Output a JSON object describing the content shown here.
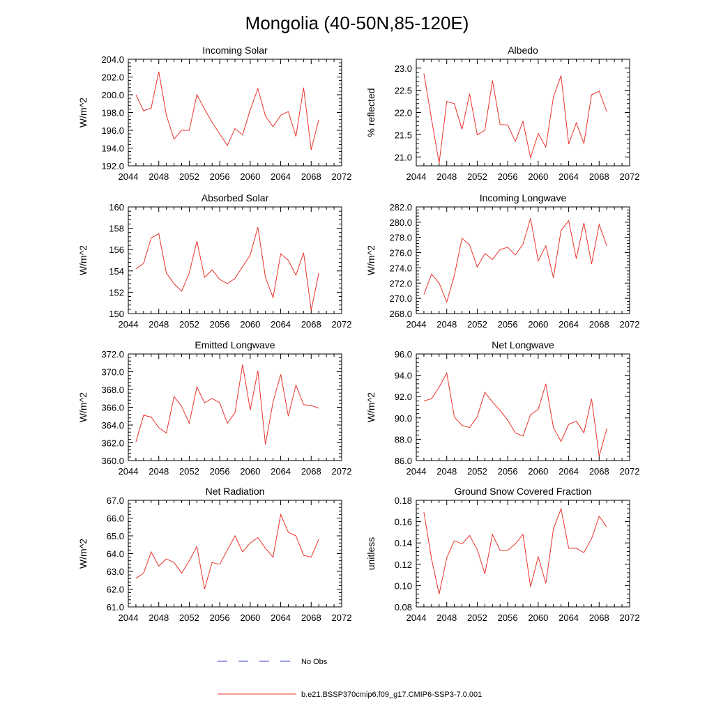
{
  "page_title": "Mongolia (40-50N,85-120E)",
  "legend": {
    "placement": "bottom-center",
    "entries": [
      {
        "label": "No Obs",
        "color": "#3b3bd0",
        "style": "dashed"
      },
      {
        "label": "b.e21.BSSP370cmip6.f09_g17.CMIP6-SSP3-7.0.001",
        "color": "#e8322a",
        "style": "solid"
      }
    ]
  },
  "colors": {
    "series_line": "#e8322a"
  },
  "chart_data": [
    {
      "type": "line",
      "title": "Incoming Solar",
      "ylabel": "W/m^2",
      "xlim": [
        2044,
        2072
      ],
      "ylim": [
        192,
        204
      ],
      "x_ticks": [
        "2044",
        "2048",
        "2052",
        "2056",
        "2060",
        "2064",
        "2068",
        "2072"
      ],
      "y_ticks": [
        "192.0",
        "194.0",
        "196.0",
        "198.0",
        "200.0",
        "202.0",
        "204.0"
      ],
      "x": [
        2045,
        2046,
        2047,
        2048,
        2049,
        2050,
        2051,
        2052,
        2053,
        2054,
        2055,
        2056,
        2057,
        2058,
        2059,
        2060,
        2061,
        2062,
        2063,
        2064,
        2065,
        2066,
        2067,
        2068,
        2069
      ],
      "series": [
        {
          "values": [
            200.0,
            198.2,
            198.5,
            202.6,
            197.7,
            195.0,
            196.0,
            196.0,
            200.0,
            198.4,
            196.9,
            195.6,
            194.3,
            196.2,
            195.5,
            198.3,
            200.7,
            197.6,
            196.4,
            197.7,
            198.1,
            195.3,
            200.8,
            193.8,
            197.2
          ]
        }
      ]
    },
    {
      "type": "line",
      "title": "Albedo",
      "ylabel": "% reflected",
      "xlim": [
        2044,
        2072
      ],
      "ylim": [
        20.8,
        23.2
      ],
      "x_ticks": [
        "2044",
        "2048",
        "2052",
        "2056",
        "2060",
        "2064",
        "2068",
        "2072"
      ],
      "y_ticks": [
        "21.0",
        "21.5",
        "22.0",
        "22.5",
        "23.0"
      ],
      "x": [
        2045,
        2046,
        2047,
        2048,
        2049,
        2050,
        2051,
        2052,
        2053,
        2054,
        2055,
        2056,
        2057,
        2058,
        2059,
        2060,
        2061,
        2062,
        2063,
        2064,
        2065,
        2066,
        2067,
        2068,
        2069
      ],
      "series": [
        {
          "values": [
            22.88,
            21.85,
            20.86,
            22.25,
            22.2,
            21.62,
            22.42,
            21.5,
            21.6,
            22.72,
            21.73,
            21.72,
            21.35,
            21.8,
            20.98,
            21.53,
            21.22,
            22.35,
            22.83,
            21.29,
            21.77,
            21.3,
            22.4,
            22.48,
            22.02
          ]
        }
      ]
    },
    {
      "type": "line",
      "title": "Absorbed Solar",
      "ylabel": "W/m^2",
      "xlim": [
        2044,
        2072
      ],
      "ylim": [
        150,
        160
      ],
      "x_ticks": [
        "2044",
        "2048",
        "2052",
        "2056",
        "2060",
        "2064",
        "2068",
        "2072"
      ],
      "y_ticks": [
        "150",
        "152",
        "154",
        "156",
        "158",
        "160"
      ],
      "x": [
        2045,
        2046,
        2047,
        2048,
        2049,
        2050,
        2051,
        2052,
        2053,
        2054,
        2055,
        2056,
        2057,
        2058,
        2059,
        2060,
        2061,
        2062,
        2063,
        2064,
        2065,
        2066,
        2067,
        2068,
        2069
      ],
      "series": [
        {
          "values": [
            154.2,
            154.7,
            157.1,
            157.5,
            153.8,
            152.8,
            152.1,
            153.8,
            156.8,
            153.4,
            154.1,
            153.2,
            152.8,
            153.3,
            154.4,
            155.5,
            158.1,
            153.4,
            151.5,
            155.6,
            155.0,
            153.6,
            155.7,
            150.3,
            153.8
          ]
        }
      ]
    },
    {
      "type": "line",
      "title": "Incoming Longwave",
      "ylabel": "W/m^2",
      "xlim": [
        2044,
        2072
      ],
      "ylim": [
        268,
        282
      ],
      "x_ticks": [
        "2044",
        "2048",
        "2052",
        "2056",
        "2060",
        "2064",
        "2068",
        "2072"
      ],
      "y_ticks": [
        "268.0",
        "270.0",
        "272.0",
        "274.0",
        "276.0",
        "278.0",
        "280.0",
        "282.0"
      ],
      "x": [
        2045,
        2046,
        2047,
        2048,
        2049,
        2050,
        2051,
        2052,
        2053,
        2054,
        2055,
        2056,
        2057,
        2058,
        2059,
        2060,
        2061,
        2062,
        2063,
        2064,
        2065,
        2066,
        2067,
        2068,
        2069
      ],
      "series": [
        {
          "values": [
            270.5,
            273.2,
            272.0,
            269.5,
            273.0,
            277.9,
            277.0,
            274.1,
            275.9,
            275.1,
            276.4,
            276.7,
            275.7,
            277.1,
            280.5,
            274.9,
            276.9,
            272.7,
            278.9,
            280.2,
            275.2,
            279.9,
            274.5,
            279.7,
            276.9
          ]
        }
      ]
    },
    {
      "type": "line",
      "title": "Emitted Longwave",
      "ylabel": "W/m^2",
      "xlim": [
        2044,
        2072
      ],
      "ylim": [
        360,
        372
      ],
      "x_ticks": [
        "2044",
        "2048",
        "2052",
        "2056",
        "2060",
        "2064",
        "2068",
        "2072"
      ],
      "y_ticks": [
        "360.0",
        "362.0",
        "364.0",
        "366.0",
        "368.0",
        "370.0",
        "372.0"
      ],
      "x": [
        2045,
        2046,
        2047,
        2048,
        2049,
        2050,
        2051,
        2052,
        2053,
        2054,
        2055,
        2056,
        2057,
        2058,
        2059,
        2060,
        2061,
        2062,
        2063,
        2064,
        2065,
        2066,
        2067,
        2068,
        2069
      ],
      "series": [
        {
          "values": [
            362.1,
            365.1,
            364.9,
            363.7,
            363.1,
            367.2,
            366.1,
            364.2,
            368.3,
            366.5,
            367.0,
            366.5,
            364.2,
            365.4,
            370.8,
            365.7,
            370.1,
            361.8,
            366.6,
            369.7,
            365.0,
            368.5,
            366.3,
            366.2,
            365.9
          ]
        }
      ]
    },
    {
      "type": "line",
      "title": "Net Longwave",
      "ylabel": "W/m^2",
      "xlim": [
        2044,
        2072
      ],
      "ylim": [
        86,
        96
      ],
      "x_ticks": [
        "2044",
        "2048",
        "2052",
        "2056",
        "2060",
        "2064",
        "2068",
        "2072"
      ],
      "y_ticks": [
        "86.0",
        "88.0",
        "90.0",
        "92.0",
        "94.0",
        "96.0"
      ],
      "x": [
        2045,
        2046,
        2047,
        2048,
        2049,
        2050,
        2051,
        2052,
        2053,
        2054,
        2055,
        2056,
        2057,
        2058,
        2059,
        2060,
        2061,
        2062,
        2063,
        2064,
        2065,
        2066,
        2067,
        2068,
        2069
      ],
      "series": [
        {
          "values": [
            91.6,
            91.8,
            92.9,
            94.2,
            90.1,
            89.3,
            89.1,
            90.1,
            92.4,
            91.5,
            90.7,
            89.8,
            88.6,
            88.3,
            90.3,
            90.8,
            93.2,
            89.1,
            87.8,
            89.4,
            89.7,
            88.6,
            91.8,
            86.4,
            89.0
          ]
        }
      ]
    },
    {
      "type": "line",
      "title": "Net Radiation",
      "ylabel": "W/m^2",
      "xlim": [
        2044,
        2072
      ],
      "ylim": [
        61,
        67
      ],
      "x_ticks": [
        "2044",
        "2048",
        "2052",
        "2056",
        "2060",
        "2064",
        "2068",
        "2072"
      ],
      "y_ticks": [
        "61.0",
        "62.0",
        "63.0",
        "64.0",
        "65.0",
        "66.0",
        "67.0"
      ],
      "x": [
        2045,
        2046,
        2047,
        2048,
        2049,
        2050,
        2051,
        2052,
        2053,
        2054,
        2055,
        2056,
        2057,
        2058,
        2059,
        2060,
        2061,
        2062,
        2063,
        2064,
        2065,
        2066,
        2067,
        2068,
        2069
      ],
      "series": [
        {
          "values": [
            62.6,
            62.9,
            64.1,
            63.3,
            63.7,
            63.5,
            62.9,
            63.6,
            64.4,
            62.0,
            63.5,
            63.4,
            64.2,
            65.0,
            64.1,
            64.6,
            64.9,
            64.3,
            63.8,
            66.2,
            65.2,
            65.0,
            63.9,
            63.8,
            64.8
          ]
        }
      ]
    },
    {
      "type": "line",
      "title": "Ground Snow Covered Fraction",
      "ylabel": "unitless",
      "xlim": [
        2044,
        2072
      ],
      "ylim": [
        0.08,
        0.18
      ],
      "x_ticks": [
        "2044",
        "2048",
        "2052",
        "2056",
        "2060",
        "2064",
        "2068",
        "2072"
      ],
      "y_ticks": [
        "0.08",
        "0.10",
        "0.12",
        "0.14",
        "0.16",
        "0.18"
      ],
      "x": [
        2045,
        2046,
        2047,
        2048,
        2049,
        2050,
        2051,
        2052,
        2053,
        2054,
        2055,
        2056,
        2057,
        2058,
        2059,
        2060,
        2061,
        2062,
        2063,
        2064,
        2065,
        2066,
        2067,
        2068,
        2069
      ],
      "series": [
        {
          "values": [
            0.169,
            0.125,
            0.092,
            0.126,
            0.142,
            0.139,
            0.147,
            0.134,
            0.111,
            0.148,
            0.133,
            0.133,
            0.139,
            0.148,
            0.099,
            0.127,
            0.102,
            0.153,
            0.172,
            0.135,
            0.135,
            0.131,
            0.144,
            0.165,
            0.155
          ]
        }
      ]
    }
  ]
}
